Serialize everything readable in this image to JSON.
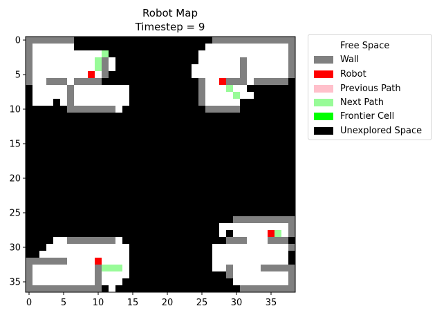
{
  "chart_data": {
    "type": "heatmap",
    "title": "Robot Map",
    "subtitle": "Timestep = 9",
    "xlabel": "",
    "ylabel": "",
    "xlim": [
      -0.5,
      38.5
    ],
    "ylim": [
      36.5,
      -0.5
    ],
    "x_ticks": [
      0,
      5,
      10,
      15,
      20,
      25,
      30,
      35
    ],
    "y_ticks": [
      0,
      5,
      10,
      15,
      20,
      25,
      30,
      35
    ],
    "grid": false,
    "legend_position": "outside-right",
    "legend": [
      {
        "label": "Free Space",
        "color": "#ffffff"
      },
      {
        "label": "Wall",
        "color": "#808080"
      },
      {
        "label": "Robot",
        "color": "#ff0000"
      },
      {
        "label": "Previous Path",
        "color": "#ffc0cb"
      },
      {
        "label": "Next Path",
        "color": "#98fb98"
      },
      {
        "label": "Frontier Cell",
        "color": "#00ff00"
      },
      {
        "label": "Unexplored Space",
        "color": "#000000"
      }
    ],
    "cell_codes": {
      ".": "Free Space",
      "#": "Wall",
      "R": "Robot",
      "n": "Next Path",
      "X": "Unexplored Space"
    },
    "grid_rows": [
      "XXXXXXXXXXXXXXXXXXXXXXXXXXXXXXXXXXXXXXX",
      "#......XXXXXXXXXXXXXXXXXXXXXXXXXXXXXXXX",
      "#..........nXXXXXXXXXXXXXXXXXXXXXXXXXXX",
      "#.........n#.XXXXXXXXXXXXXXXXXXXXXXXXXX",
      "#.........n#.XXXXXXXXXXXXXXXXXXXXXXXXXX",
      "#........R.#XXXXXXXXXXXXXXXXXXXXXXXXXXX",
      "#..###.####XXXXXXXXXXXXXXXXXXXXXXXXXXXX",
      "X.....X..XXXXXXXXXXXXXXXXXXXXXXXXXXXXXX",
      "X.....X..XXXXXXXXXXXXXXXXXXXXXXXXXXXXXX",
      "X...X.X..XXXXXXXXXXXXXXXXXXXXXXXXXXXXXX",
      "XXXXXXXXXXXXXXXXXXXXXXXXXXXXXXXXXXXXXXX",
      "XXXXXXXXXXXXXXXXXXXXXXXXXXXXXXXXXXXXXXX",
      "XXXXXXXXXXXXXXXXXXXXXXXXXXXXXXXXXXXXXXX",
      "XXXXXXXXXXXXXXXXXXXXXXXXXXXXXXXXXXXXXXX",
      "XXXXXXXXXXXXXXXXXXXXXXXXXXXXXXXXXXXXXXX",
      "XXXXXXXXXXXXXXXXXXXXXXXXXXXXXXXXXXXXXXX",
      "XXXXXXXXXXXXXXXXXXXXXXXXXXXXXXXXXXXXXXX",
      "XXXXXXXXXXXXXXXXXXXXXXXXXXXXXXXXXXXXXXX",
      "XXXXXXXXXXXXXXXXXXXXXXXXXXXXXXXXXXXXXXX",
      "XXXXXXXXXXXXXXXXXXXXXXXXXXXXXXXXXXXXXXX",
      "XXXXXXXXXXXXXXXXXXXXXXXXXXXXXXXXXXXXXXX",
      "XXXXXXXXXXXXXXXXXXXXXXXXXXXXXXXXXXXXXXX",
      "XXXXXXXXXXXXXXXXXXXXXXXXXXXXXXXXXXXXXXX",
      "XXXXXXXXXXXXXXXXXXXXXXXXXXXXXXXXXXXXXXX",
      "XXXXXXXXXXXXXXXXXXXXXXXXXXXXXXXXXXXXXXX",
      "XXXXXXXXXXXXXXXXXXXXXXXXXXXXXXXXXXXXXXX",
      "XXXXXXXXXXXXXXXXXXXXXXXXXXXXXXXXXXXXXXX",
      "XXXXXXXXXXXXXXXXXXXXXXXXXXXXXXXXXXXXXXX",
      "XXXXXXXXXXXXXXXXXXXXXXXXXXXXXXXXXXXXXXX",
      "XXXXXXXXXXXXXXXXXXXXXXXXXXXXXXXXXXXXXXX",
      "XXXXXXXXXXXXXXXXXXXXXXXXXXXXXXXXXXXXXXX",
      "XXXXXXXXXXXXXXXXXXXXXXXXXXXXXXXXXXXXXXX",
      "XXXXXXXXXXXXXXXXXXXXXXXXXXXXXXXXXXXXXXX",
      "XXXXXXXXXXXXXXXXXXXXXXXXXXXXXXXXXXXXXXX",
      "XXXXXXXXXXXXXXXXXXXXXXXXXXXXXXXXXXXXXXX",
      "XXXXXXXXXXXXXXXXXXXXXXXXXXXXXXXXXXXXXXX",
      "XXXXXXXXXXXXXXXXXXXXXXXXXXXXXXXXXXXXXXX"
    ],
    "overlay_rows": [
      [
        0,
        0,
        6,
        "#"
      ],
      [
        0,
        27,
        38,
        "#"
      ],
      [
        1,
        26,
        37,
        "."
      ],
      [
        1,
        38,
        38,
        "#"
      ],
      [
        2,
        25,
        37,
        "."
      ],
      [
        2,
        38,
        38,
        "#"
      ],
      [
        3,
        25,
        30,
        "."
      ],
      [
        3,
        31,
        31,
        "#"
      ],
      [
        3,
        32,
        37,
        "."
      ],
      [
        3,
        38,
        38,
        "#"
      ],
      [
        4,
        24,
        30,
        "."
      ],
      [
        4,
        31,
        31,
        "#"
      ],
      [
        4,
        32,
        37,
        "."
      ],
      [
        4,
        38,
        38,
        "#"
      ],
      [
        5,
        24,
        30,
        "."
      ],
      [
        5,
        31,
        31,
        "#"
      ],
      [
        5,
        32,
        37,
        "."
      ],
      [
        5,
        38,
        38,
        "#"
      ],
      [
        6,
        25,
        25,
        "#"
      ],
      [
        6,
        26,
        27,
        "."
      ],
      [
        6,
        28,
        28,
        "R"
      ],
      [
        6,
        29,
        29,
        "#"
      ],
      [
        6,
        30,
        31,
        "#"
      ],
      [
        6,
        32,
        32,
        "."
      ],
      [
        6,
        33,
        37,
        "#"
      ],
      [
        7,
        25,
        25,
        "#"
      ],
      [
        7,
        26,
        28,
        "."
      ],
      [
        7,
        29,
        29,
        "n"
      ],
      [
        7,
        30,
        31,
        "."
      ],
      [
        7,
        32,
        32,
        "X"
      ],
      [
        8,
        25,
        25,
        "#"
      ],
      [
        8,
        26,
        29,
        "."
      ],
      [
        8,
        30,
        30,
        "n"
      ],
      [
        8,
        31,
        32,
        "."
      ],
      [
        9,
        25,
        25,
        "#"
      ],
      [
        9,
        26,
        30,
        "."
      ],
      [
        9,
        31,
        31,
        "X"
      ],
      [
        10,
        26,
        30,
        "#"
      ],
      [
        7,
        7,
        14,
        "."
      ],
      [
        8,
        7,
        14,
        "."
      ],
      [
        9,
        6,
        6,
        "#"
      ],
      [
        9,
        7,
        14,
        "."
      ],
      [
        7,
        6,
        6,
        "#"
      ],
      [
        8,
        6,
        6,
        "#"
      ],
      [
        10,
        6,
        12,
        "#"
      ],
      [
        10,
        13,
        13,
        "."
      ],
      [
        26,
        30,
        38,
        "#"
      ],
      [
        27,
        28,
        37,
        "."
      ],
      [
        27,
        38,
        38,
        "#"
      ],
      [
        28,
        28,
        28,
        "."
      ],
      [
        28,
        30,
        34,
        "."
      ],
      [
        28,
        35,
        35,
        "R"
      ],
      [
        28,
        36,
        36,
        "n"
      ],
      [
        28,
        37,
        37,
        "."
      ],
      [
        28,
        38,
        38,
        "#"
      ],
      [
        29,
        29,
        30,
        "#"
      ],
      [
        29,
        31,
        31,
        "#"
      ],
      [
        29,
        32,
        34,
        "."
      ],
      [
        29,
        35,
        37,
        "#"
      ],
      [
        29,
        38,
        38,
        "X"
      ],
      [
        30,
        27,
        37,
        "."
      ],
      [
        30,
        38,
        38,
        "#"
      ],
      [
        31,
        27,
        37,
        "."
      ],
      [
        32,
        27,
        37,
        "."
      ],
      [
        33,
        27,
        28,
        "."
      ],
      [
        33,
        29,
        29,
        "#"
      ],
      [
        33,
        30,
        33,
        "."
      ],
      [
        33,
        34,
        38,
        "#"
      ],
      [
        34,
        29,
        29,
        "#"
      ],
      [
        34,
        30,
        37,
        "."
      ],
      [
        34,
        38,
        38,
        "#"
      ],
      [
        35,
        29,
        29,
        "X"
      ],
      [
        35,
        30,
        37,
        "."
      ],
      [
        35,
        38,
        38,
        "#"
      ],
      [
        36,
        30,
        30,
        "X"
      ],
      [
        36,
        31,
        38,
        "#"
      ],
      [
        29,
        4,
        5,
        "."
      ],
      [
        29,
        6,
        12,
        "#"
      ],
      [
        29,
        13,
        13,
        "."
      ],
      [
        30,
        3,
        14,
        "."
      ],
      [
        31,
        2,
        14,
        "."
      ],
      [
        32,
        0,
        5,
        "#"
      ],
      [
        32,
        6,
        9,
        "."
      ],
      [
        32,
        10,
        10,
        "R"
      ],
      [
        32,
        11,
        14,
        "."
      ],
      [
        33,
        0,
        0,
        "#"
      ],
      [
        33,
        1,
        9,
        "."
      ],
      [
        33,
        10,
        10,
        "#"
      ],
      [
        33,
        11,
        13,
        "n"
      ],
      [
        33,
        14,
        14,
        "."
      ],
      [
        34,
        0,
        0,
        "#"
      ],
      [
        34,
        1,
        9,
        "."
      ],
      [
        34,
        10,
        10,
        "#"
      ],
      [
        34,
        11,
        14,
        "."
      ],
      [
        35,
        0,
        0,
        "#"
      ],
      [
        35,
        1,
        9,
        "."
      ],
      [
        35,
        10,
        10,
        "#"
      ],
      [
        35,
        11,
        13,
        "."
      ],
      [
        36,
        0,
        10,
        "#"
      ],
      [
        36,
        11,
        11,
        "X"
      ],
      [
        36,
        12,
        12,
        "."
      ]
    ]
  }
}
